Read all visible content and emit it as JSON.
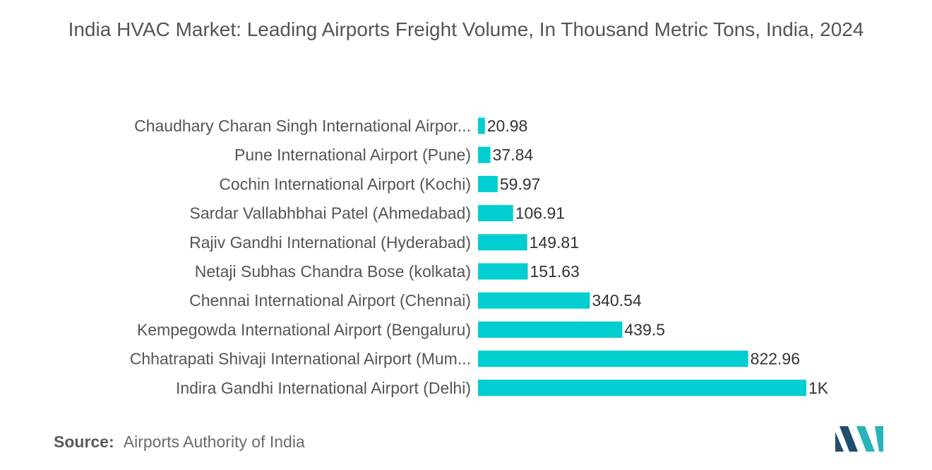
{
  "title": "India HVAC Market: Leading Airports Freight Volume, In Thousand Metric Tons, India, 2024",
  "source": {
    "label": "Source:",
    "text": "Airports Authority of India"
  },
  "colors": {
    "bar": "#00CED1",
    "label_text": "#555555",
    "value_text": "#333333",
    "logo_dark": "#1f4e6e",
    "logo_teal": "#27b3b8"
  },
  "logo": {
    "icon": "mordor-intelligence-logo"
  },
  "chart_data": {
    "type": "bar",
    "orientation": "horizontal",
    "categories": [
      "Chaudhary Charan Singh International Airpor...",
      "Pune International Airport (Pune)",
      "Cochin International Airport (Kochi)",
      "Sardar Vallabhbhai Patel (Ahmedabad)",
      "Rajiv Gandhi International (Hyderabad)",
      "Netaji Subhas Chandra Bose (kolkata)",
      "Chennai International Airport (Chennai)",
      "Kempegowda International Airport (Bengaluru)",
      "Chhatrapati Shivaji International Airport (Mum...",
      "Indira Gandhi International Airport (Delhi)"
    ],
    "values": [
      20.98,
      37.84,
      59.97,
      106.91,
      149.81,
      151.63,
      340.54,
      439.5,
      822.96,
      1000
    ],
    "value_labels": [
      "20.98",
      "37.84",
      "59.97",
      "106.91",
      "149.81",
      "151.63",
      "340.54",
      "439.5",
      "822.96",
      "1K"
    ],
    "xlim": [
      0,
      1000
    ],
    "grid": false,
    "legend": "none"
  }
}
